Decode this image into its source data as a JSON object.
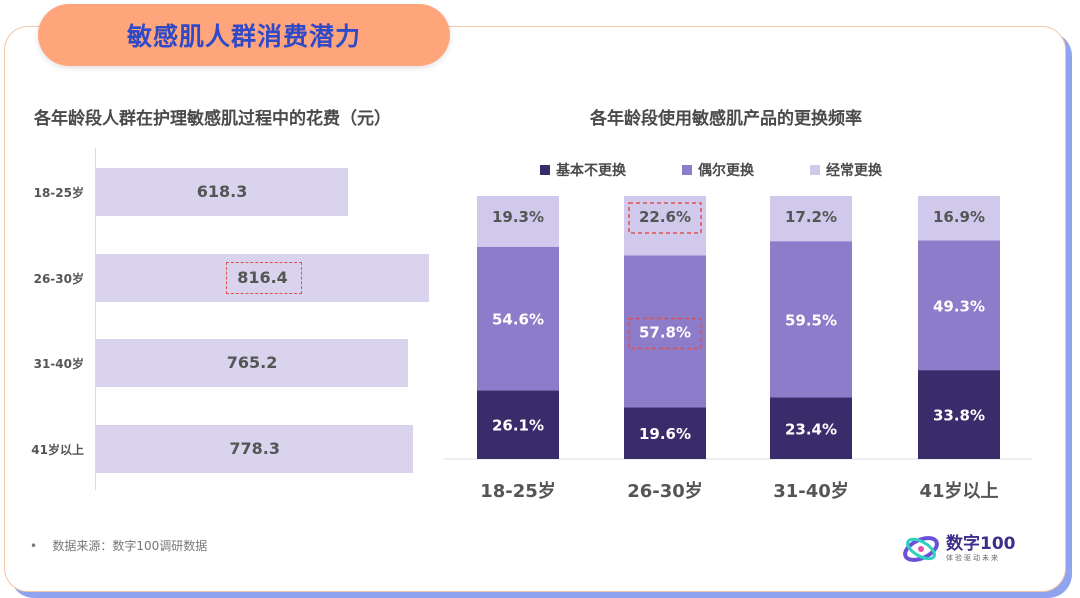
{
  "title": "敏感肌人群消费潜力",
  "colors": {
    "title_pill": "#ffa57c",
    "title_text": "#2f49c8",
    "hbar": "#d9d3ee",
    "series": [
      "#3a2b6b",
      "#8c7cc9",
      "#d1c9ec"
    ],
    "highlight": "#e05050"
  },
  "chart_data": [
    {
      "type": "bar",
      "orientation": "horizontal",
      "title": "各年龄段人群在护理敏感肌过程中的花费（元）",
      "categories": [
        "18-25岁",
        "26-30岁",
        "31-40岁",
        "41岁以上"
      ],
      "values": [
        618.3,
        816.4,
        765.2,
        778.3
      ],
      "value_labels": [
        "618.3",
        "816.4",
        "765.2",
        "778.3"
      ],
      "highlighted_category": "26-30岁"
    },
    {
      "type": "bar",
      "stacked": true,
      "title": "各年龄段使用敏感肌产品的更换频率",
      "categories": [
        "18-25岁",
        "26-30岁",
        "31-40岁",
        "41岁以上"
      ],
      "series": [
        {
          "name": "基本不更换",
          "values": [
            26.1,
            19.6,
            23.4,
            33.8
          ],
          "labels": [
            "26.1%",
            "19.6%",
            "23.4%",
            "33.8%"
          ]
        },
        {
          "name": "偶尔更换",
          "values": [
            54.6,
            57.8,
            59.5,
            49.3
          ],
          "labels": [
            "54.6%",
            "57.8%",
            "59.5%",
            "49.3%"
          ]
        },
        {
          "name": "经常更换",
          "values": [
            19.3,
            22.6,
            17.2,
            16.9
          ],
          "labels": [
            "19.3%",
            "22.6%",
            "17.2%",
            "16.9%"
          ]
        }
      ],
      "legend_position": "top",
      "highlighted": [
        {
          "category": "26-30岁",
          "series": [
            "偶尔更换",
            "经常更换"
          ]
        }
      ]
    }
  ],
  "footer": {
    "bullet": "•",
    "source": "数据来源：数字100调研数据",
    "logo_name": "数字100",
    "logo_slogan": "体验驱动未来",
    "logo_icon": "orbit-logo-icon"
  }
}
